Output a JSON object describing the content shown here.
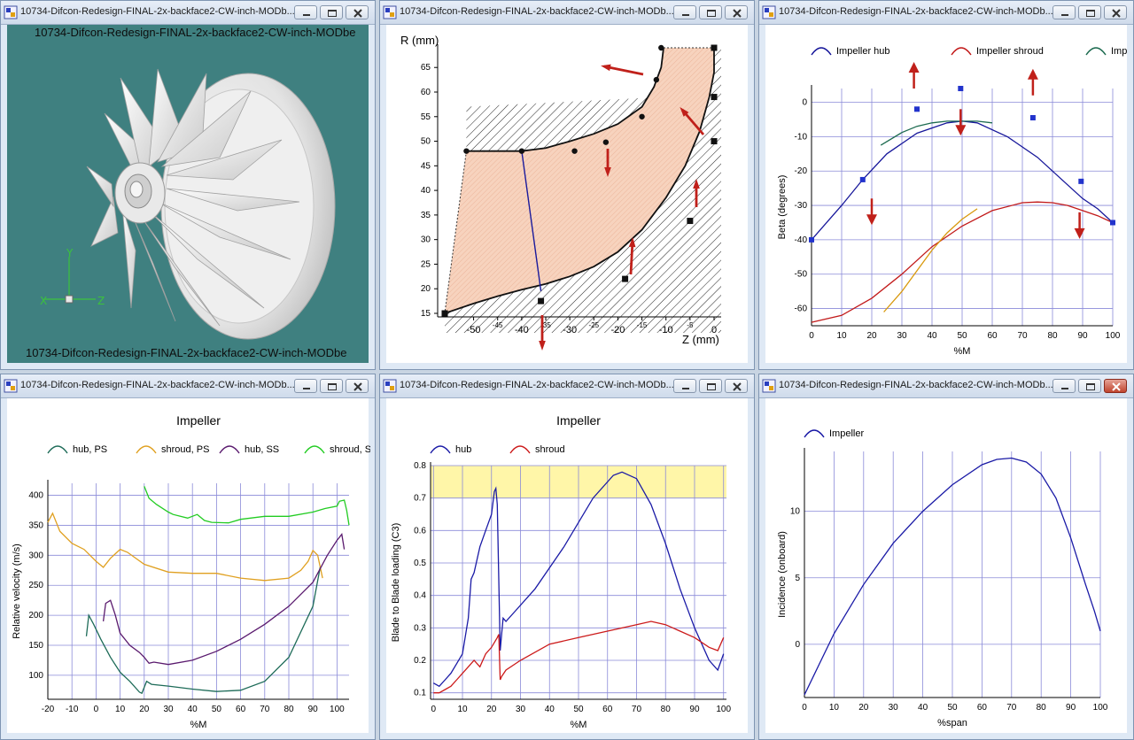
{
  "window_title": "10734-Difcon-Redesign-FINAL-2x-backface2-CW-inch-MODb...",
  "model_view": {
    "label": "10734-Difcon-Redesign-FINAL-2x-backface2-CW-inch-MODbe",
    "axis_y": "Y",
    "axis_x": "X",
    "axis_z": "Z",
    "background": "#3f8080"
  },
  "meridional": {
    "ylabel": "R (mm)",
    "xlabel": "Z (mm)",
    "yticks": [
      "15",
      "20",
      "25",
      "30",
      "35",
      "40",
      "45",
      "50",
      "55",
      "60",
      "65"
    ],
    "xticks": [
      "-50",
      "-45",
      "-40",
      "-35",
      "-30",
      "-25",
      "-20",
      "-15",
      "-10",
      "-5",
      "0"
    ],
    "shroud_curve": [
      [
        -51.5,
        48
      ],
      [
        -45,
        48
      ],
      [
        -40,
        48
      ],
      [
        -35,
        48.6
      ],
      [
        -30,
        50
      ],
      [
        -25,
        51.5
      ],
      [
        -20,
        53.5
      ],
      [
        -15,
        57
      ],
      [
        -12.5,
        61
      ],
      [
        -11,
        65
      ],
      [
        -10.5,
        69
      ]
    ],
    "hub_curve": [
      [
        -56,
        15
      ],
      [
        -50,
        17
      ],
      [
        -45,
        18.5
      ],
      [
        -40,
        19.8
      ],
      [
        -35,
        21
      ],
      [
        -30,
        22.5
      ],
      [
        -25,
        24.5
      ],
      [
        -20,
        27.5
      ],
      [
        -15,
        32
      ],
      [
        -10,
        38.5
      ],
      [
        -6,
        45
      ],
      [
        -3,
        52
      ],
      [
        -1,
        59
      ],
      [
        0,
        64
      ],
      [
        0,
        69
      ]
    ],
    "control_points_shroud": [
      [
        -51.5,
        48
      ],
      [
        -40,
        48
      ],
      [
        -29,
        48
      ],
      [
        -22.5,
        49.8
      ],
      [
        -15,
        55
      ],
      [
        -12,
        62.5
      ],
      [
        -11,
        69
      ]
    ],
    "control_points_hub": [
      [
        -56,
        15
      ],
      [
        -36,
        17.5
      ],
      [
        -18.5,
        22
      ],
      [
        -5,
        33.8
      ],
      [
        0,
        50
      ],
      [
        0,
        59
      ],
      [
        0,
        69
      ]
    ],
    "leading_edge": [
      [
        -40,
        48
      ],
      [
        -36,
        19.5
      ]
    ],
    "colors": {
      "fill": "#f7d3be",
      "line": "#111111",
      "arrow": "#c0201a",
      "le": "#1a1a9c"
    }
  },
  "chart_data": [
    {
      "type": "line",
      "title": "",
      "xlabel": "%M",
      "ylabel": "Beta (degrees)",
      "xlim": [
        0,
        100
      ],
      "ylim": [
        -65,
        4
      ],
      "xticks": [
        "0",
        "10",
        "20",
        "30",
        "40",
        "50",
        "60",
        "70",
        "80",
        "90",
        "100"
      ],
      "yticks": [
        "0",
        "-10",
        "-20",
        "-30",
        "-40",
        "-50",
        "-60"
      ],
      "series": [
        {
          "name": "Impeller hub",
          "color": "#16169a",
          "x": [
            0,
            10,
            17,
            25,
            35,
            45,
            50,
            55,
            65,
            75,
            85,
            90,
            95,
            100
          ],
          "y": [
            -40,
            -30,
            -22.5,
            -15,
            -9,
            -6,
            -5.5,
            -6,
            -10,
            -16,
            -24,
            -28,
            -31,
            -35
          ]
        },
        {
          "name": "Impeller shroud",
          "color": "#c21a1a",
          "x": [
            0,
            10,
            20,
            30,
            40,
            50,
            60,
            70,
            75,
            80,
            85,
            90,
            95,
            100
          ],
          "y": [
            -64,
            -62,
            -57,
            -50,
            -42,
            -36,
            -31.5,
            -29.2,
            -29,
            -29.2,
            -30,
            -31.5,
            -33,
            -35
          ]
        },
        {
          "name": "Imp",
          "color": "#1d6b50",
          "x": [
            23,
            30,
            35,
            40,
            45,
            50,
            55,
            60
          ],
          "y": [
            -12.5,
            -8.8,
            -7,
            -6,
            -5.5,
            -5.5,
            -5.5,
            -6
          ]
        },
        {
          "name": "",
          "color": "#d8980c",
          "x": [
            24,
            30,
            35,
            40,
            45,
            50,
            55
          ],
          "y": [
            -61,
            -55,
            -49,
            -43,
            -38,
            -34,
            -31
          ]
        }
      ],
      "markers": [
        [
          0,
          -40
        ],
        [
          17,
          -22.5
        ],
        [
          35,
          -2
        ],
        [
          49.5,
          4
        ],
        [
          73.5,
          -4.5
        ],
        [
          89.5,
          -23
        ],
        [
          100,
          -35
        ]
      ]
    },
    {
      "type": "line",
      "title": "Impeller",
      "xlabel": "%M",
      "ylabel": "Relative velocity (m/s)",
      "xlim": [
        -20,
        105
      ],
      "ylim": [
        60,
        420
      ],
      "xticks": [
        "-20",
        "-10",
        "0",
        "10",
        "20",
        "30",
        "40",
        "50",
        "60",
        "70",
        "80",
        "90",
        "100"
      ],
      "yticks": [
        "100",
        "150",
        "200",
        "250",
        "300",
        "350",
        "400"
      ],
      "series": [
        {
          "name": "hub, PS",
          "color": "#1d6b58",
          "x": [
            -4,
            -3,
            -1,
            2,
            6,
            10,
            14,
            18,
            19,
            21,
            23,
            30,
            40,
            50,
            60,
            70,
            80,
            90,
            93
          ],
          "y": [
            165,
            200,
            185,
            160,
            130,
            105,
            90,
            72,
            70,
            90,
            85,
            82,
            77,
            73,
            75,
            90,
            130,
            215,
            280
          ]
        },
        {
          "name": "shroud, PS",
          "color": "#e0a020",
          "x": [
            -20,
            -18,
            -15,
            -10,
            -5,
            0,
            3,
            6,
            10,
            13,
            20,
            30,
            40,
            50,
            60,
            70,
            80,
            85,
            88,
            90,
            92,
            94
          ],
          "y": [
            355,
            370,
            340,
            320,
            310,
            290,
            280,
            295,
            310,
            305,
            285,
            272,
            270,
            270,
            262,
            258,
            262,
            275,
            290,
            308,
            300,
            262
          ]
        },
        {
          "name": "hub, SS",
          "color": "#5a1a6e",
          "x": [
            3,
            4,
            6,
            8,
            10,
            14,
            18,
            20,
            22,
            24,
            30,
            40,
            50,
            60,
            70,
            80,
            90,
            96,
            100,
            102,
            103
          ],
          "y": [
            190,
            220,
            225,
            200,
            170,
            150,
            138,
            130,
            120,
            122,
            118,
            125,
            140,
            160,
            185,
            215,
            255,
            300,
            325,
            335,
            310
          ]
        },
        {
          "name": "shroud, SS",
          "color": "#22cc22",
          "x": [
            20,
            22,
            25,
            30,
            32,
            35,
            38,
            42,
            45,
            48,
            55,
            60,
            70,
            80,
            90,
            95,
            100,
            101,
            103,
            104,
            105
          ],
          "y": [
            415,
            395,
            385,
            372,
            368,
            365,
            362,
            368,
            358,
            355,
            354,
            360,
            365,
            365,
            372,
            378,
            382,
            390,
            392,
            375,
            350
          ]
        }
      ]
    },
    {
      "type": "line",
      "title": "Impeller",
      "xlabel": "%M",
      "ylabel": "Blade to Blade loading (C3)",
      "xlim": [
        -1,
        101
      ],
      "ylim": [
        0.08,
        0.8
      ],
      "xticks": [
        "0",
        "10",
        "20",
        "30",
        "40",
        "50",
        "60",
        "70",
        "80",
        "90",
        "100"
      ],
      "yticks": [
        "0.1",
        "0.2",
        "0.3",
        "0.4",
        "0.5",
        "0.6",
        "0.7",
        "0.8"
      ],
      "highlight_band": [
        0.7,
        0.8
      ],
      "highlight_color": "#fff6a8",
      "series": [
        {
          "name": "hub",
          "color": "#1a1aa6",
          "x": [
            0,
            2,
            4,
            6,
            8,
            10,
            12,
            13,
            14,
            16,
            18,
            20,
            21,
            21.5,
            22,
            23,
            23.5,
            24,
            25,
            28,
            35,
            45,
            55,
            62,
            65,
            70,
            75,
            80,
            85,
            90,
            95,
            98,
            100
          ],
          "y": [
            0.13,
            0.12,
            0.14,
            0.16,
            0.19,
            0.22,
            0.33,
            0.45,
            0.47,
            0.55,
            0.6,
            0.65,
            0.72,
            0.73,
            0.68,
            0.23,
            0.28,
            0.33,
            0.32,
            0.35,
            0.42,
            0.55,
            0.7,
            0.77,
            0.78,
            0.76,
            0.68,
            0.56,
            0.42,
            0.3,
            0.2,
            0.17,
            0.22
          ]
        },
        {
          "name": "shroud",
          "color": "#cc1a1a",
          "x": [
            0,
            2,
            4,
            6,
            8,
            10,
            12,
            14,
            16,
            18,
            20,
            22,
            22.5,
            23,
            23.5,
            25,
            30,
            40,
            50,
            60,
            70,
            75,
            80,
            85,
            90,
            95,
            98,
            100
          ],
          "y": [
            0.1,
            0.1,
            0.11,
            0.12,
            0.14,
            0.16,
            0.18,
            0.2,
            0.18,
            0.22,
            0.24,
            0.27,
            0.28,
            0.14,
            0.15,
            0.17,
            0.2,
            0.25,
            0.27,
            0.29,
            0.31,
            0.32,
            0.31,
            0.29,
            0.27,
            0.24,
            0.23,
            0.27
          ]
        }
      ]
    },
    {
      "type": "line",
      "title": "",
      "xlabel": "%span",
      "ylabel": "Incidence (onboard)",
      "xlim": [
        0,
        100
      ],
      "ylim": [
        -4,
        14.5
      ],
      "xticks": [
        "0",
        "10",
        "20",
        "30",
        "40",
        "50",
        "60",
        "70",
        "80",
        "90",
        "100"
      ],
      "yticks": [
        "0",
        "5",
        "10"
      ],
      "series": [
        {
          "name": "Impeller",
          "color": "#1a1aa6",
          "x": [
            0,
            5,
            10,
            20,
            30,
            40,
            50,
            60,
            65,
            70,
            75,
            80,
            85,
            90,
            95,
            98,
            100
          ],
          "y": [
            -3.8,
            -1.5,
            0.8,
            4.5,
            7.6,
            10,
            12,
            13.5,
            13.9,
            14,
            13.7,
            12.8,
            11,
            8,
            4.5,
            2.5,
            1
          ]
        }
      ]
    }
  ]
}
